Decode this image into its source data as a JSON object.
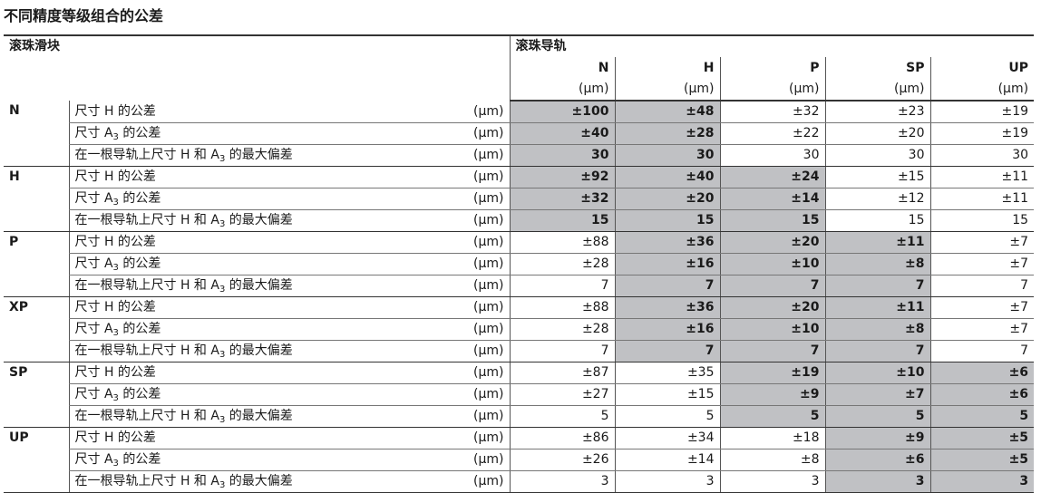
{
  "title": "不同精度等级组合的公差",
  "header": {
    "slider_label": "滚珠滑块",
    "rail_label": "滚珠导轨",
    "rail_classes": [
      "N",
      "H",
      "P",
      "SP",
      "UP"
    ],
    "unit": "(μm)"
  },
  "shade_color": "#c0c1c4",
  "row_labels": [
    {
      "pre": "尺寸 H 的公差",
      "sub": "",
      "post": ""
    },
    {
      "pre": "尺寸 A",
      "sub": "3",
      "post": " 的公差"
    },
    {
      "pre": "在一根导轨上尺寸 H 和 A",
      "sub": "3",
      "post": " 的最大偏差"
    }
  ],
  "groups": [
    {
      "grade": "N",
      "shaded": [
        true,
        true,
        false,
        false,
        false
      ],
      "rows": [
        [
          "±100",
          "±48",
          "±32",
          "±23",
          "±19"
        ],
        [
          "±40",
          "±28",
          "±22",
          "±20",
          "±19"
        ],
        [
          "30",
          "30",
          "30",
          "30",
          "30"
        ]
      ]
    },
    {
      "grade": "H",
      "shaded": [
        true,
        true,
        true,
        false,
        false
      ],
      "rows": [
        [
          "±92",
          "±40",
          "±24",
          "±15",
          "±11"
        ],
        [
          "±32",
          "±20",
          "±14",
          "±12",
          "±11"
        ],
        [
          "15",
          "15",
          "15",
          "15",
          "15"
        ]
      ]
    },
    {
      "grade": "P",
      "shaded": [
        false,
        true,
        true,
        true,
        false
      ],
      "rows": [
        [
          "±88",
          "±36",
          "±20",
          "±11",
          "±7"
        ],
        [
          "±28",
          "±16",
          "±10",
          "±8",
          "±7"
        ],
        [
          "7",
          "7",
          "7",
          "7",
          "7"
        ]
      ]
    },
    {
      "grade": "XP",
      "shaded": [
        false,
        true,
        true,
        true,
        false
      ],
      "rows": [
        [
          "±88",
          "±36",
          "±20",
          "±11",
          "±7"
        ],
        [
          "±28",
          "±16",
          "±10",
          "±8",
          "±7"
        ],
        [
          "7",
          "7",
          "7",
          "7",
          "7"
        ]
      ]
    },
    {
      "grade": "SP",
      "shaded": [
        false,
        false,
        true,
        true,
        true
      ],
      "rows": [
        [
          "±87",
          "±35",
          "±19",
          "±10",
          "±6"
        ],
        [
          "±27",
          "±15",
          "±9",
          "±7",
          "±6"
        ],
        [
          "5",
          "5",
          "5",
          "5",
          "5"
        ]
      ]
    },
    {
      "grade": "UP",
      "shaded": [
        false,
        false,
        false,
        true,
        true
      ],
      "rows": [
        [
          "±86",
          "±34",
          "±18",
          "±9",
          "±5"
        ],
        [
          "±26",
          "±14",
          "±8",
          "±6",
          "±5"
        ],
        [
          "3",
          "3",
          "3",
          "3",
          "3"
        ]
      ]
    }
  ]
}
